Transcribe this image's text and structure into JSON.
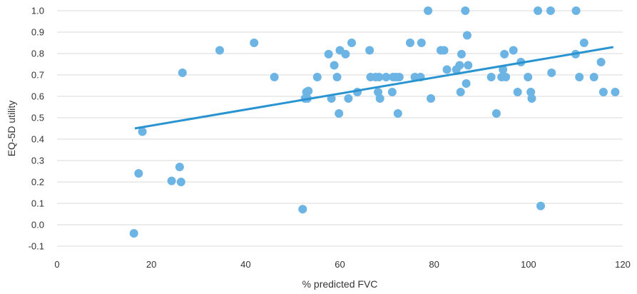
{
  "chart_data": {
    "type": "scatter",
    "xlabel": "% predicted FVC",
    "ylabel": "EQ-5D utility",
    "xlim": [
      0,
      120
    ],
    "ylim": [
      -0.1,
      1.0
    ],
    "x_ticks": [
      "0",
      "20",
      "40",
      "60",
      "80",
      "100",
      "120"
    ],
    "y_ticks": [
      "-0.1",
      "0.0",
      "0.1",
      "0.2",
      "0.3",
      "0.4",
      "0.5",
      "0.6",
      "0.7",
      "0.8",
      "0.9",
      "1.0"
    ],
    "grid": "horizontal",
    "point_color": "#6cb4e4",
    "trendline": {
      "type": "linear",
      "color": "#2a94d0",
      "x": [
        16.5,
        118
      ],
      "y": [
        0.45,
        0.83
      ]
    },
    "points": [
      [
        16.3,
        -0.04
      ],
      [
        17.3,
        0.24
      ],
      [
        18.1,
        0.435
      ],
      [
        24.3,
        0.205
      ],
      [
        26,
        0.27
      ],
      [
        26.3,
        0.2
      ],
      [
        26.6,
        0.71
      ],
      [
        34.5,
        0.815
      ],
      [
        41.8,
        0.85
      ],
      [
        46.1,
        0.69
      ],
      [
        52.1,
        0.073
      ],
      [
        52.6,
        0.59
      ],
      [
        52.9,
        0.62
      ],
      [
        53.1,
        0.59
      ],
      [
        53.3,
        0.625
      ],
      [
        55.2,
        0.69
      ],
      [
        57.6,
        0.797
      ],
      [
        58.2,
        0.59
      ],
      [
        58.8,
        0.745
      ],
      [
        59.4,
        0.69
      ],
      [
        59.8,
        0.52
      ],
      [
        60,
        0.815
      ],
      [
        61.2,
        0.797
      ],
      [
        61.8,
        0.59
      ],
      [
        62.5,
        0.85
      ],
      [
        63.7,
        0.62
      ],
      [
        66.3,
        0.815
      ],
      [
        66.5,
        0.69
      ],
      [
        67.6,
        0.69
      ],
      [
        68.1,
        0.62
      ],
      [
        68.3,
        0.69
      ],
      [
        68.5,
        0.59
      ],
      [
        69.8,
        0.69
      ],
      [
        71.1,
        0.62
      ],
      [
        71.3,
        0.69
      ],
      [
        71.9,
        0.69
      ],
      [
        72.3,
        0.52
      ],
      [
        72.6,
        0.69
      ],
      [
        74.9,
        0.85
      ],
      [
        75.9,
        0.69
      ],
      [
        77.1,
        0.69
      ],
      [
        77.3,
        0.85
      ],
      [
        78.7,
        1.0
      ],
      [
        79.3,
        0.59
      ],
      [
        81.4,
        0.815
      ],
      [
        82.1,
        0.815
      ],
      [
        82.7,
        0.725
      ],
      [
        84.7,
        0.725
      ],
      [
        85.4,
        0.745
      ],
      [
        85.6,
        0.62
      ],
      [
        85.8,
        0.797
      ],
      [
        86.6,
        1.0
      ],
      [
        86.8,
        0.66
      ],
      [
        87,
        0.885
      ],
      [
        87.2,
        0.745
      ],
      [
        92.1,
        0.69
      ],
      [
        93.2,
        0.52
      ],
      [
        94.3,
        0.69
      ],
      [
        94.6,
        0.725
      ],
      [
        94.9,
        0.797
      ],
      [
        95.2,
        0.69
      ],
      [
        96.8,
        0.815
      ],
      [
        97.7,
        0.62
      ],
      [
        98.4,
        0.76
      ],
      [
        99.9,
        0.69
      ],
      [
        100.5,
        0.62
      ],
      [
        100.7,
        0.59
      ],
      [
        102,
        1.0
      ],
      [
        102.6,
        0.088
      ],
      [
        104.7,
        1.0
      ],
      [
        104.9,
        0.71
      ],
      [
        110,
        0.797
      ],
      [
        110.1,
        1.0
      ],
      [
        110.8,
        0.69
      ],
      [
        111.8,
        0.85
      ],
      [
        113.9,
        0.69
      ],
      [
        115.4,
        0.76
      ],
      [
        115.9,
        0.62
      ],
      [
        118.4,
        0.62
      ]
    ]
  }
}
